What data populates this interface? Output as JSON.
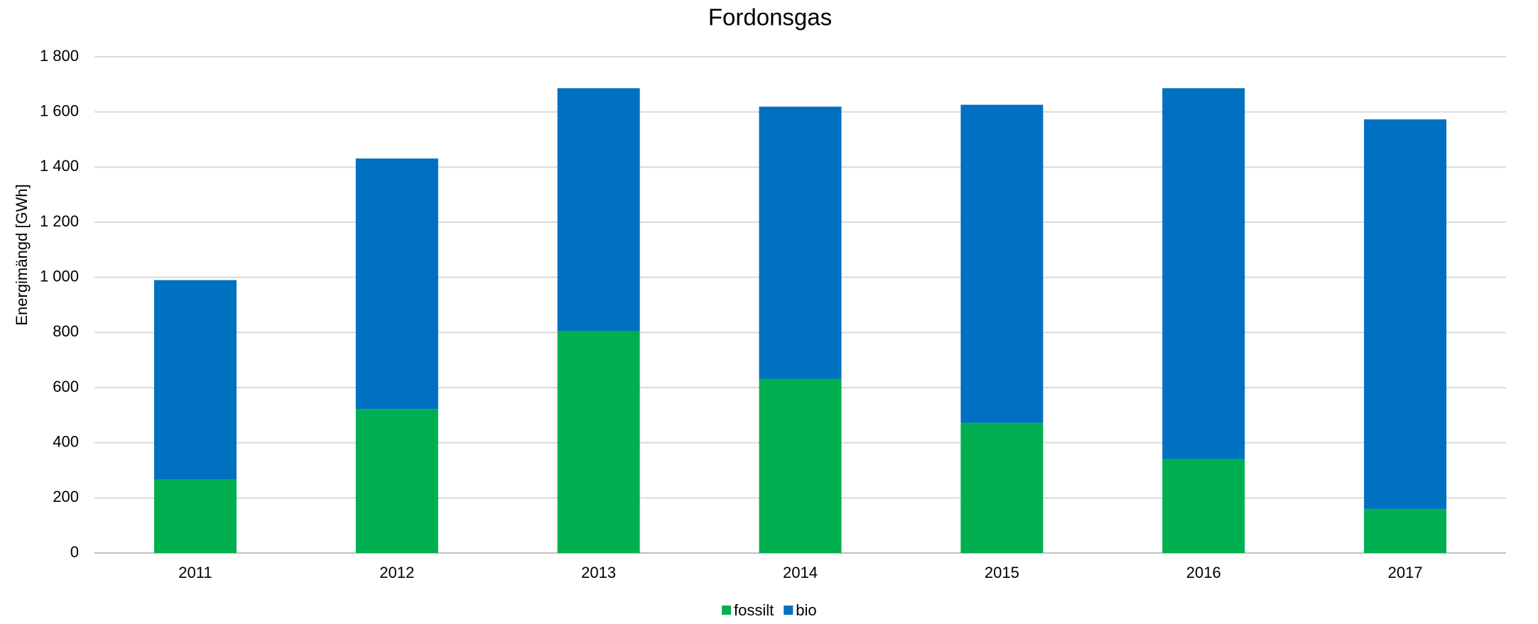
{
  "chart_data": {
    "type": "stacked_bar",
    "title": "Fordonsgas",
    "y_label": "Energimängd [GWh]",
    "categories": [
      "2011",
      "2012",
      "2013",
      "2014",
      "2015",
      "2016",
      "2017"
    ],
    "series": [
      {
        "name": "fossilt",
        "color": "#00b050",
        "values": [
          266,
          522,
          806,
          632,
          472,
          341,
          160
        ]
      },
      {
        "name": "bio",
        "color": "#0070c0",
        "values": [
          724,
          909,
          880,
          987,
          1154,
          1345,
          1413
        ]
      }
    ],
    "ylim": [
      0,
      1800
    ],
    "yticks": [
      0,
      200,
      400,
      600,
      800,
      {
        "value": 1000,
        "label": "1 000"
      },
      {
        "value": 1200,
        "label": "1 200"
      },
      {
        "value": 1400,
        "label": "1 400"
      },
      {
        "value": 1600,
        "label": "1 600"
      },
      {
        "value": 1800,
        "label": "1 800"
      }
    ],
    "grid": true,
    "legend": "bottom"
  }
}
